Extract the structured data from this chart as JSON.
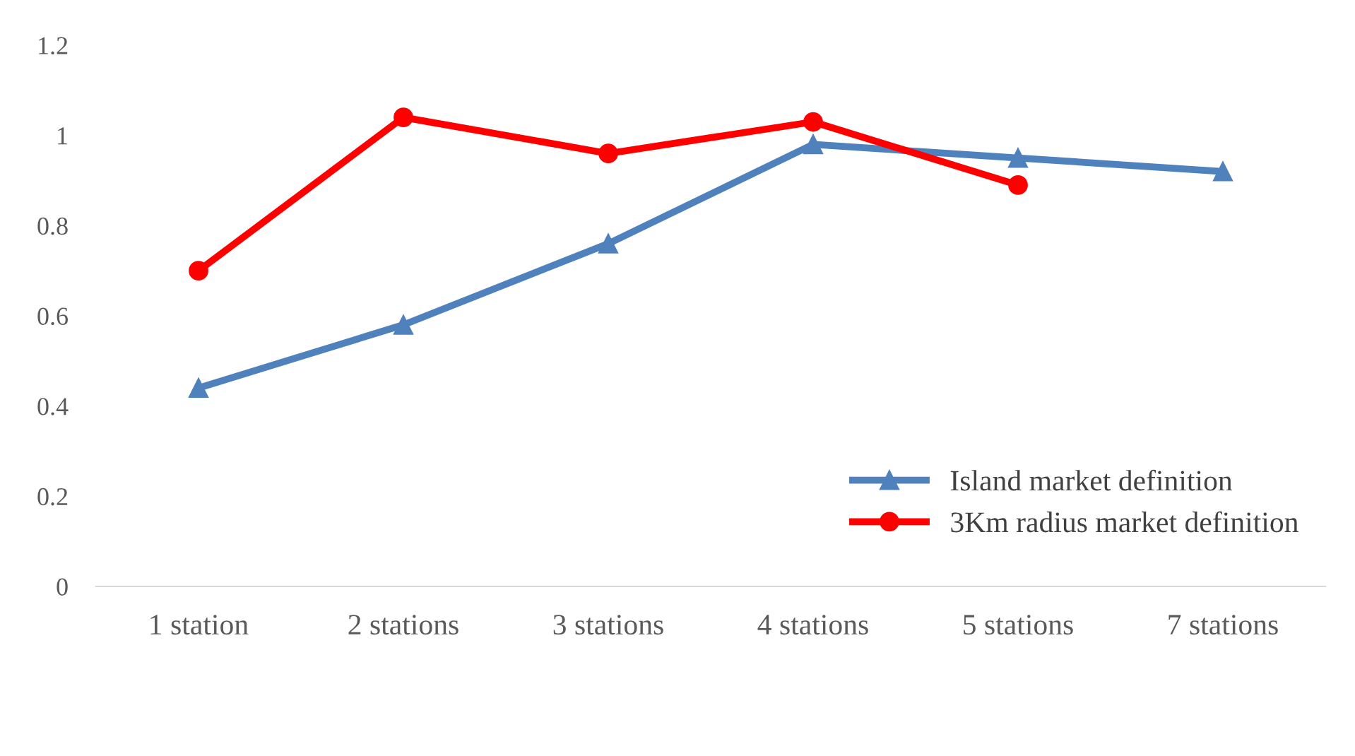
{
  "chart_data": {
    "type": "line",
    "categories": [
      "1 station",
      "2 stations",
      "3 stations",
      "4 stations",
      "5 stations",
      "7 stations"
    ],
    "series": [
      {
        "name": "Island market definition",
        "color": "#4f81bd",
        "marker": "triangle",
        "values": [
          0.44,
          0.58,
          0.76,
          0.98,
          0.95,
          0.92
        ]
      },
      {
        "name": "3Km radius market definition",
        "color": "#ff0000",
        "marker": "circle",
        "values": [
          0.7,
          1.04,
          0.96,
          1.03,
          0.89,
          null
        ]
      }
    ],
    "ylim": [
      0,
      1.2
    ],
    "yticks": [
      0,
      0.2,
      0.4,
      0.6,
      0.8,
      1,
      1.2
    ],
    "grid": false,
    "legend": "bottom right"
  }
}
